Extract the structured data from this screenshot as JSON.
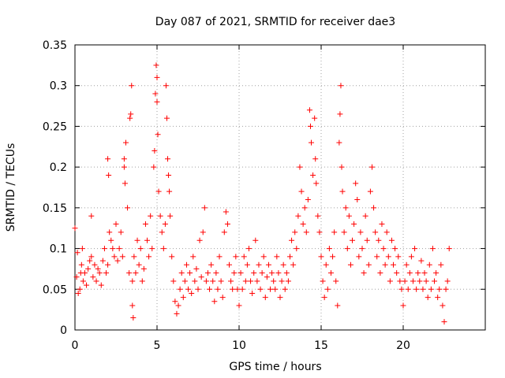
{
  "chart_data": {
    "type": "scatter",
    "title": "Day 087 of 2021, SRMTID for receiver dae3",
    "xlabel": "GPS time / hours",
    "ylabel": "SRMTID / TECUs",
    "xlim": [
      0,
      25
    ],
    "ylim": [
      0,
      0.35
    ],
    "xticks": [
      0,
      5,
      10,
      15,
      20
    ],
    "xtick_labels": [
      "0",
      "5",
      "10",
      "15",
      "20"
    ],
    "yticks": [
      0,
      0.05,
      0.1,
      0.15,
      0.2,
      0.25,
      0.3,
      0.35
    ],
    "ytick_labels": [
      "0",
      "0.05",
      "0.1",
      "0.15",
      "0.2",
      "0.25",
      "0.3",
      "0.35"
    ],
    "grid": true,
    "marker": "plus",
    "color": "#ff0000",
    "series": [
      {
        "name": "dae3",
        "points": [
          [
            0.0,
            0.125
          ],
          [
            0.1,
            0.065
          ],
          [
            0.15,
            0.095
          ],
          [
            0.2,
            0.045
          ],
          [
            0.3,
            0.05
          ],
          [
            0.35,
            0.07
          ],
          [
            0.4,
            0.08
          ],
          [
            0.45,
            0.1
          ],
          [
            0.5,
            0.06
          ],
          [
            0.6,
            0.07
          ],
          [
            0.7,
            0.055
          ],
          [
            0.8,
            0.075
          ],
          [
            0.9,
            0.085
          ],
          [
            1.0,
            0.14
          ],
          [
            1.0,
            0.09
          ],
          [
            1.1,
            0.065
          ],
          [
            1.2,
            0.08
          ],
          [
            1.3,
            0.06
          ],
          [
            1.4,
            0.075
          ],
          [
            1.5,
            0.07
          ],
          [
            1.6,
            0.055
          ],
          [
            1.7,
            0.085
          ],
          [
            1.8,
            0.1
          ],
          [
            1.9,
            0.07
          ],
          [
            2.0,
            0.08
          ],
          [
            2.0,
            0.21
          ],
          [
            2.05,
            0.19
          ],
          [
            2.1,
            0.12
          ],
          [
            2.2,
            0.11
          ],
          [
            2.3,
            0.1
          ],
          [
            2.4,
            0.09
          ],
          [
            2.5,
            0.13
          ],
          [
            2.6,
            0.085
          ],
          [
            2.7,
            0.1
          ],
          [
            2.8,
            0.12
          ],
          [
            2.9,
            0.09
          ],
          [
            3.0,
            0.21
          ],
          [
            3.0,
            0.2
          ],
          [
            3.05,
            0.18
          ],
          [
            3.1,
            0.23
          ],
          [
            3.2,
            0.15
          ],
          [
            3.3,
            0.07
          ],
          [
            3.35,
            0.26
          ],
          [
            3.4,
            0.265
          ],
          [
            3.45,
            0.3
          ],
          [
            3.5,
            0.06
          ],
          [
            3.5,
            0.03
          ],
          [
            3.55,
            0.015
          ],
          [
            3.6,
            0.09
          ],
          [
            3.7,
            0.07
          ],
          [
            3.8,
            0.11
          ],
          [
            3.9,
            0.08
          ],
          [
            4.0,
            0.1
          ],
          [
            4.1,
            0.06
          ],
          [
            4.2,
            0.075
          ],
          [
            4.3,
            0.13
          ],
          [
            4.4,
            0.11
          ],
          [
            4.5,
            0.09
          ],
          [
            4.6,
            0.14
          ],
          [
            4.7,
            0.1
          ],
          [
            4.8,
            0.2
          ],
          [
            4.85,
            0.22
          ],
          [
            4.9,
            0.29
          ],
          [
            4.95,
            0.325
          ],
          [
            5.0,
            0.31
          ],
          [
            5.0,
            0.28
          ],
          [
            5.05,
            0.24
          ],
          [
            5.1,
            0.17
          ],
          [
            5.2,
            0.14
          ],
          [
            5.3,
            0.12
          ],
          [
            5.4,
            0.1
          ],
          [
            5.5,
            0.13
          ],
          [
            5.55,
            0.3
          ],
          [
            5.6,
            0.26
          ],
          [
            5.65,
            0.21
          ],
          [
            5.7,
            0.19
          ],
          [
            5.75,
            0.17
          ],
          [
            5.8,
            0.14
          ],
          [
            5.9,
            0.09
          ],
          [
            6.0,
            0.06
          ],
          [
            6.1,
            0.035
          ],
          [
            6.2,
            0.02
          ],
          [
            6.3,
            0.03
          ],
          [
            6.4,
            0.05
          ],
          [
            6.5,
            0.07
          ],
          [
            6.6,
            0.04
          ],
          [
            6.7,
            0.06
          ],
          [
            6.8,
            0.08
          ],
          [
            6.9,
            0.05
          ],
          [
            7.0,
            0.07
          ],
          [
            7.1,
            0.045
          ],
          [
            7.2,
            0.09
          ],
          [
            7.3,
            0.06
          ],
          [
            7.4,
            0.075
          ],
          [
            7.5,
            0.05
          ],
          [
            7.6,
            0.11
          ],
          [
            7.7,
            0.065
          ],
          [
            7.8,
            0.12
          ],
          [
            7.9,
            0.15
          ],
          [
            8.0,
            0.06
          ],
          [
            8.1,
            0.07
          ],
          [
            8.2,
            0.05
          ],
          [
            8.3,
            0.08
          ],
          [
            8.4,
            0.06
          ],
          [
            8.5,
            0.035
          ],
          [
            8.6,
            0.07
          ],
          [
            8.7,
            0.05
          ],
          [
            8.8,
            0.09
          ],
          [
            8.9,
            0.06
          ],
          [
            9.0,
            0.04
          ],
          [
            9.1,
            0.12
          ],
          [
            9.2,
            0.145
          ],
          [
            9.3,
            0.13
          ],
          [
            9.4,
            0.08
          ],
          [
            9.5,
            0.06
          ],
          [
            9.6,
            0.05
          ],
          [
            9.7,
            0.07
          ],
          [
            9.8,
            0.09
          ],
          [
            9.9,
            0.05
          ],
          [
            10.0,
            0.03
          ],
          [
            10.1,
            0.07
          ],
          [
            10.2,
            0.05
          ],
          [
            10.3,
            0.09
          ],
          [
            10.4,
            0.06
          ],
          [
            10.5,
            0.08
          ],
          [
            10.6,
            0.1
          ],
          [
            10.7,
            0.06
          ],
          [
            10.8,
            0.045
          ],
          [
            10.9,
            0.07
          ],
          [
            11.0,
            0.11
          ],
          [
            11.1,
            0.06
          ],
          [
            11.2,
            0.08
          ],
          [
            11.3,
            0.05
          ],
          [
            11.4,
            0.07
          ],
          [
            11.5,
            0.09
          ],
          [
            11.6,
            0.04
          ],
          [
            11.7,
            0.065
          ],
          [
            11.8,
            0.08
          ],
          [
            11.9,
            0.05
          ],
          [
            12.0,
            0.07
          ],
          [
            12.1,
            0.06
          ],
          [
            12.2,
            0.05
          ],
          [
            12.3,
            0.09
          ],
          [
            12.4,
            0.07
          ],
          [
            12.5,
            0.04
          ],
          [
            12.6,
            0.06
          ],
          [
            12.7,
            0.08
          ],
          [
            12.8,
            0.05
          ],
          [
            12.9,
            0.07
          ],
          [
            13.0,
            0.06
          ],
          [
            13.1,
            0.09
          ],
          [
            13.2,
            0.11
          ],
          [
            13.3,
            0.08
          ],
          [
            13.4,
            0.12
          ],
          [
            13.5,
            0.1
          ],
          [
            13.6,
            0.14
          ],
          [
            13.7,
            0.2
          ],
          [
            13.8,
            0.17
          ],
          [
            13.9,
            0.13
          ],
          [
            14.0,
            0.15
          ],
          [
            14.1,
            0.12
          ],
          [
            14.2,
            0.16
          ],
          [
            14.3,
            0.27
          ],
          [
            14.35,
            0.25
          ],
          [
            14.4,
            0.23
          ],
          [
            14.5,
            0.19
          ],
          [
            14.6,
            0.26
          ],
          [
            14.65,
            0.21
          ],
          [
            14.7,
            0.18
          ],
          [
            14.8,
            0.14
          ],
          [
            14.9,
            0.12
          ],
          [
            15.0,
            0.09
          ],
          [
            15.1,
            0.06
          ],
          [
            15.2,
            0.04
          ],
          [
            15.3,
            0.08
          ],
          [
            15.4,
            0.05
          ],
          [
            15.5,
            0.1
          ],
          [
            15.6,
            0.07
          ],
          [
            15.7,
            0.09
          ],
          [
            15.8,
            0.12
          ],
          [
            15.9,
            0.06
          ],
          [
            16.0,
            0.03
          ],
          [
            16.1,
            0.23
          ],
          [
            16.15,
            0.265
          ],
          [
            16.2,
            0.3
          ],
          [
            16.25,
            0.2
          ],
          [
            16.3,
            0.17
          ],
          [
            16.4,
            0.12
          ],
          [
            16.5,
            0.15
          ],
          [
            16.6,
            0.1
          ],
          [
            16.7,
            0.14
          ],
          [
            16.8,
            0.08
          ],
          [
            16.9,
            0.11
          ],
          [
            17.0,
            0.13
          ],
          [
            17.1,
            0.18
          ],
          [
            17.2,
            0.16
          ],
          [
            17.3,
            0.09
          ],
          [
            17.4,
            0.12
          ],
          [
            17.5,
            0.1
          ],
          [
            17.6,
            0.07
          ],
          [
            17.7,
            0.14
          ],
          [
            17.8,
            0.11
          ],
          [
            17.9,
            0.08
          ],
          [
            18.0,
            0.17
          ],
          [
            18.1,
            0.2
          ],
          [
            18.2,
            0.15
          ],
          [
            18.3,
            0.12
          ],
          [
            18.4,
            0.09
          ],
          [
            18.5,
            0.11
          ],
          [
            18.6,
            0.07
          ],
          [
            18.7,
            0.13
          ],
          [
            18.8,
            0.1
          ],
          [
            18.9,
            0.08
          ],
          [
            19.0,
            0.12
          ],
          [
            19.1,
            0.09
          ],
          [
            19.2,
            0.06
          ],
          [
            19.3,
            0.11
          ],
          [
            19.4,
            0.08
          ],
          [
            19.5,
            0.1
          ],
          [
            19.6,
            0.07
          ],
          [
            19.7,
            0.09
          ],
          [
            19.8,
            0.06
          ],
          [
            19.9,
            0.05
          ],
          [
            20.0,
            0.03
          ],
          [
            20.1,
            0.06
          ],
          [
            20.2,
            0.08
          ],
          [
            20.3,
            0.05
          ],
          [
            20.4,
            0.07
          ],
          [
            20.5,
            0.09
          ],
          [
            20.6,
            0.06
          ],
          [
            20.7,
            0.1
          ],
          [
            20.8,
            0.05
          ],
          [
            20.9,
            0.07
          ],
          [
            21.0,
            0.06
          ],
          [
            21.1,
            0.085
          ],
          [
            21.2,
            0.05
          ],
          [
            21.3,
            0.07
          ],
          [
            21.4,
            0.06
          ],
          [
            21.5,
            0.04
          ],
          [
            21.6,
            0.08
          ],
          [
            21.7,
            0.05
          ],
          [
            21.8,
            0.1
          ],
          [
            21.9,
            0.06
          ],
          [
            22.0,
            0.07
          ],
          [
            22.1,
            0.04
          ],
          [
            22.2,
            0.05
          ],
          [
            22.3,
            0.08
          ],
          [
            22.4,
            0.03
          ],
          [
            22.5,
            0.01
          ],
          [
            22.6,
            0.05
          ],
          [
            22.7,
            0.06
          ],
          [
            22.8,
            0.1
          ]
        ]
      }
    ]
  }
}
